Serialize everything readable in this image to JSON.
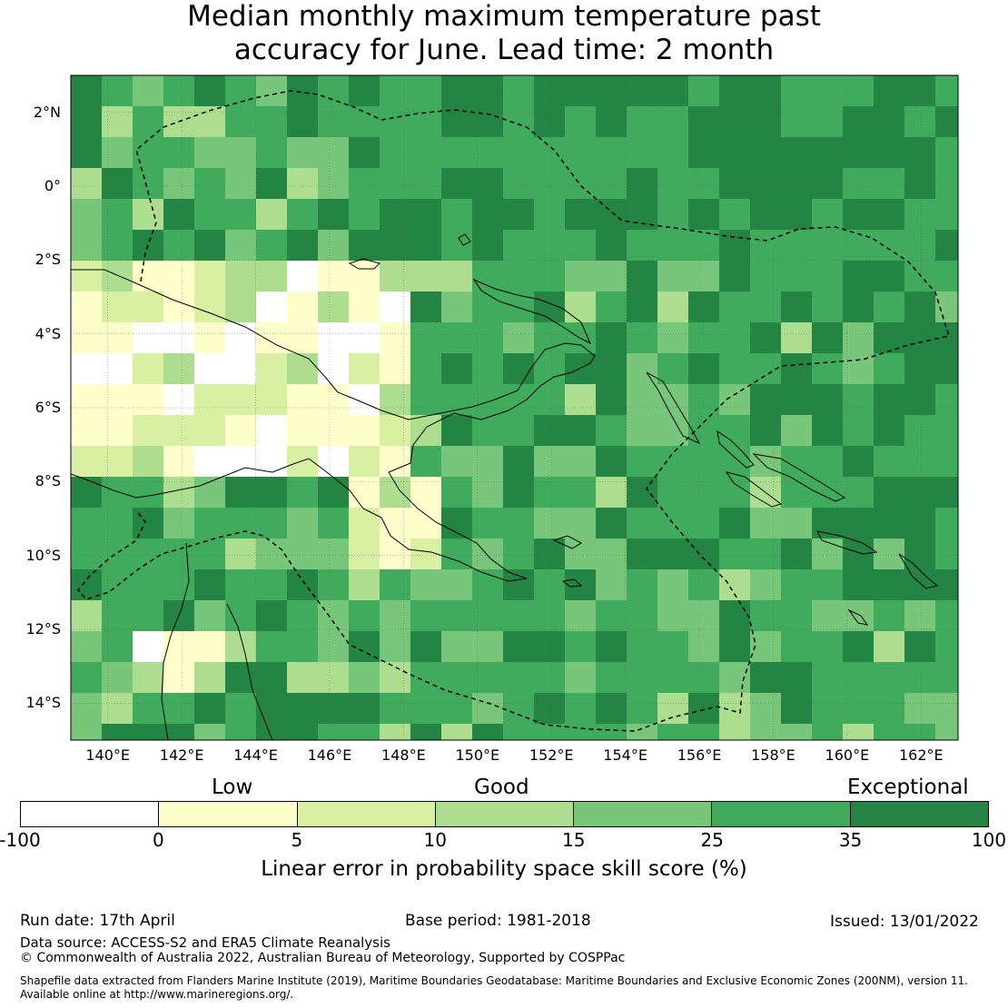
{
  "title_line1": "Median monthly maximum temperature past",
  "title_line2": "accuracy for June. Lead time: 2 month",
  "map": {
    "lat_ticks": [
      "2°N",
      "0°",
      "2°S",
      "4°S",
      "6°S",
      "8°S",
      "10°S",
      "12°S",
      "14°S"
    ],
    "lon_ticks": [
      "140°E",
      "142°E",
      "144°E",
      "146°E",
      "148°E",
      "150°E",
      "152°E",
      "154°E",
      "156°E",
      "158°E",
      "160°E",
      "162°E"
    ],
    "extent": {
      "lon_min": 139,
      "lon_max": 163,
      "lat_min": -15,
      "lat_max": 3
    }
  },
  "legend": {
    "categories": {
      "low": "Low",
      "good": "Good",
      "exceptional": "Exceptional"
    },
    "ticks": [
      "-100",
      "0",
      "5",
      "10",
      "15",
      "25",
      "35",
      "100"
    ],
    "colors": [
      "#ffffff",
      "#ffffcc",
      "#d9f0a3",
      "#addd8e",
      "#78c679",
      "#41ab5d",
      "#238443"
    ],
    "label": "Linear error in probability space skill score (%)"
  },
  "footer": {
    "run_date": "Run date: 17th April",
    "base_period": "Base period: 1981-2018",
    "issued": "Issued: 13/01/2022",
    "data_source": "Data source: ACCESS-S2 and ERA5 Climate Reanalysis",
    "copyright": "© Commonwealth of Australia 2022, Australian Bureau of Meteorology, Supported by COSPPac",
    "shapefile_line1": "Shapefile data extracted from Flanders Marine Institute (2019), Maritime Boundaries Geodatabase: Maritime Boundaries and Exclusive Economic Zones (200NM), version 11.",
    "shapefile_line2": "Available online at http://www.marineregions.org/."
  }
}
